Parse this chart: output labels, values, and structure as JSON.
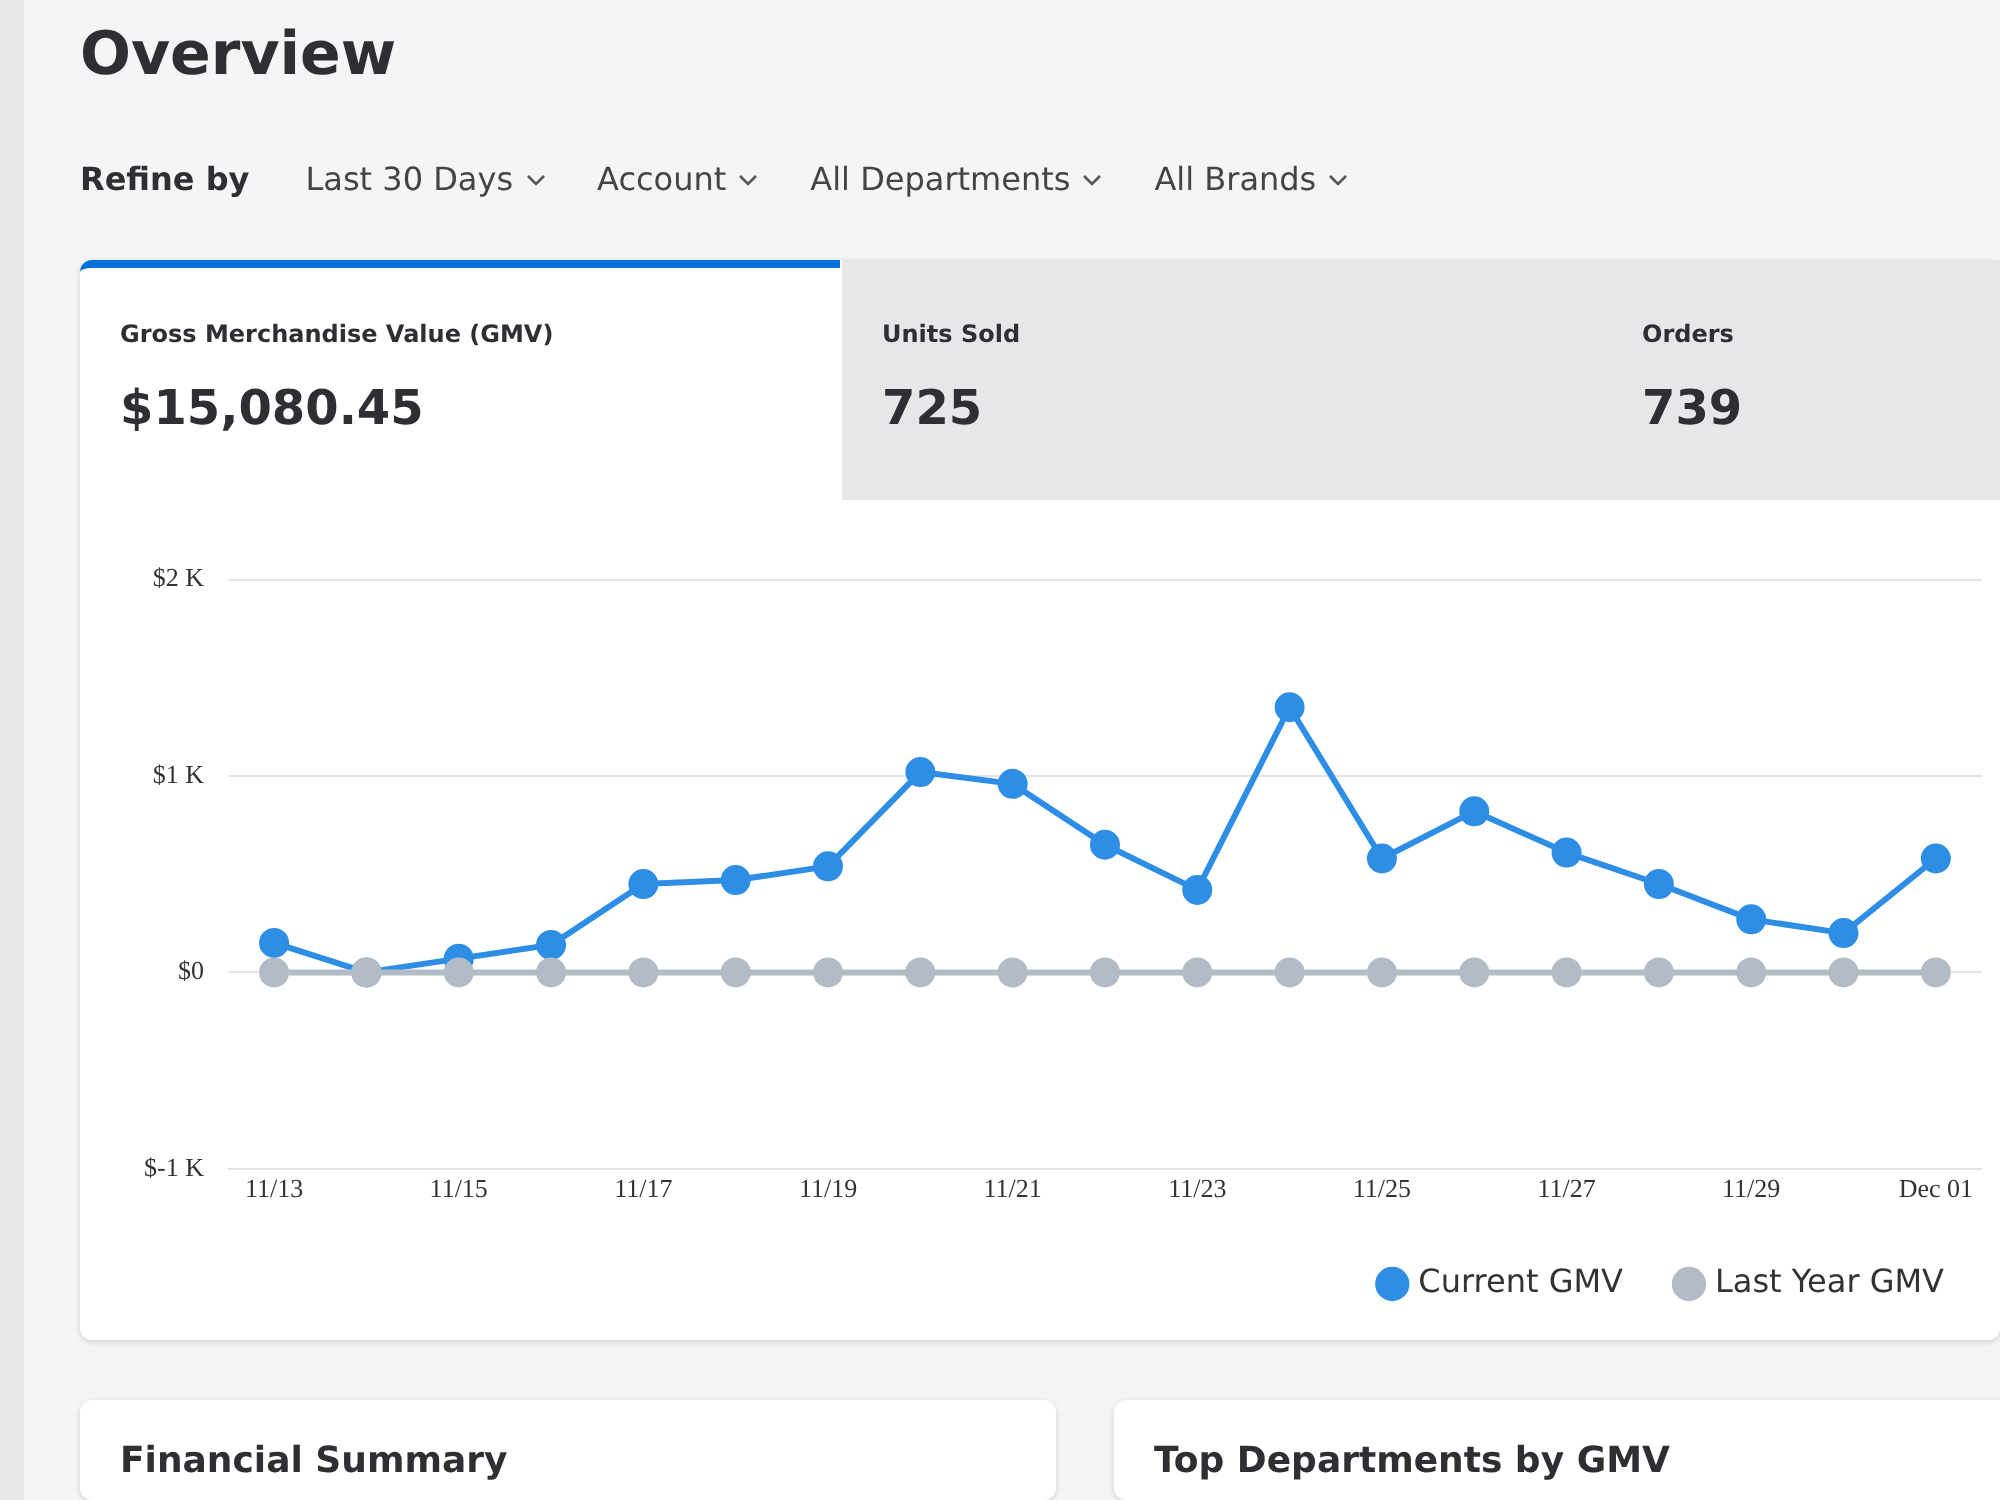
{
  "chart_data": [
    {
      "type": "other",
      "title": "Overview",
      "annotations": [
        "Refine by",
        "Last 30 Days",
        "Account",
        "All Departments",
        "All Brands",
        "Gross Merchandise Value (GMV)",
        "$15,080.45",
        "Units Sold",
        "725",
        "Orders",
        "739",
        "Financial Summary",
        "Top Departments by GMV"
      ]
    },
    {
      "type": "line",
      "categories": [
        "11/13",
        null,
        "11/15",
        null,
        "11/17",
        null,
        "11/19",
        null,
        "11/21",
        null,
        "11/23",
        null,
        "11/25",
        null,
        "11/27",
        null,
        "11/29",
        null,
        "Dec 01"
      ],
      "series": [
        {
          "name": "Current GMV",
          "color": "#2e8ee6",
          "values": [
            150,
            0,
            70,
            140,
            450,
            470,
            540,
            1020,
            960,
            650,
            420,
            1350,
            580,
            820,
            610,
            450,
            270,
            200,
            580
          ]
        },
        {
          "name": "Last Year GMV",
          "color": "#b2bbc6",
          "values": [
            0,
            0,
            0,
            0,
            0,
            0,
            0,
            0,
            0,
            0,
            0,
            0,
            0,
            0,
            0,
            0,
            0,
            0,
            0
          ]
        }
      ],
      "ylim": [
        -1000,
        2000
      ],
      "yticks": [
        {
          "value": -1000,
          "label": "$-1 K"
        },
        {
          "value": 0,
          "label": "$0"
        },
        {
          "value": 1000,
          "label": "$1 K"
        },
        {
          "value": 2000,
          "label": "$2 K"
        }
      ],
      "grid": "y",
      "legend": "bottom right",
      "marker": "circle"
    }
  ]
}
